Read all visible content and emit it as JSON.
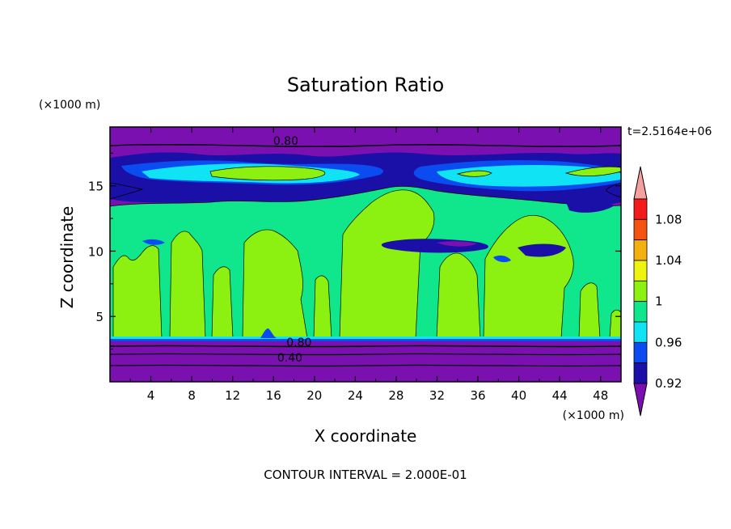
{
  "chart_data": {
    "type": "heatmap",
    "title": "Saturation Ratio",
    "xlabel": "X coordinate",
    "ylabel": "Z coordinate",
    "x_unit": "(×1000 m)",
    "y_unit": "(×1000 m)",
    "xlim": [
      0,
      50
    ],
    "ylim": [
      0,
      19.5
    ],
    "x_ticks": [
      4,
      8,
      12,
      16,
      20,
      24,
      28,
      32,
      36,
      40,
      44,
      48
    ],
    "y_ticks": [
      5,
      10,
      15
    ],
    "time_label": "t=2.5164e+06",
    "contour_interval_note": "CONTOUR INTERVAL = 2.000E-01",
    "contour_labels": [
      {
        "text": "0.80",
        "x": 17.2,
        "y": 18.2
      },
      {
        "text": "0.80",
        "x": 18.5,
        "y": 2.8
      },
      {
        "text": "0.40",
        "x": 17.6,
        "y": 1.6
      }
    ],
    "colorbar": {
      "levels": [
        0.9,
        0.92,
        0.94,
        0.96,
        0.98,
        1.0,
        1.02,
        1.04,
        1.06,
        1.08,
        1.1
      ],
      "tick_labels": [
        "0.92",
        "0.96",
        "1",
        "1.04",
        "1.08"
      ],
      "colors": [
        "#7a10b0",
        "#1a10a8",
        "#0a4cf0",
        "#10e4f4",
        "#10e68c",
        "#8cf010",
        "#ecf410",
        "#f4b010",
        "#f45410",
        "#f41a1a",
        "#f4a0a0"
      ]
    },
    "regions": [
      {
        "name": "base",
        "value": 0.85,
        "color": "#7a10b0"
      },
      {
        "name": "middle-layer",
        "value": 0.99,
        "color": "#10e68c"
      },
      {
        "name": "updraft-columns",
        "value": 1.01,
        "color": "#8cf010"
      },
      {
        "name": "upper-cloud-band",
        "value": 1.01,
        "color": "#8cf010"
      },
      {
        "name": "dry-pockets",
        "value": 0.93,
        "color": "#1a10a8"
      }
    ]
  }
}
